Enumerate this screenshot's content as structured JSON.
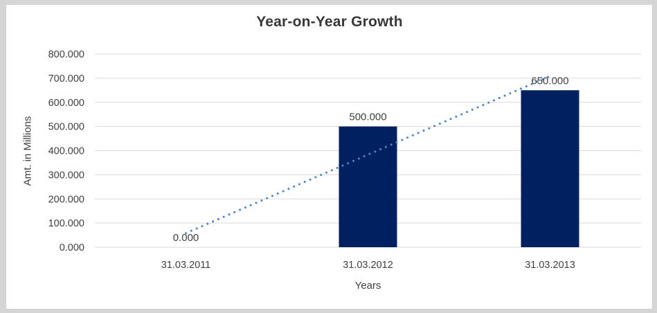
{
  "window": {
    "outer_background": "#d5d5d5",
    "chart_background": "#ffffff",
    "chart_border_color": "#cfcfcf"
  },
  "chart_data": {
    "type": "bar",
    "title": "Year-on-Year Growth",
    "xlabel": "Years",
    "ylabel": "Amt. in Millions",
    "categories": [
      "31.03.2011",
      "31.03.2012",
      "31.03.2013"
    ],
    "values": [
      0,
      500,
      650
    ],
    "data_labels": [
      "0.000",
      "500.000",
      "650.000"
    ],
    "ylim": [
      0,
      800
    ],
    "yticks": [
      0,
      100,
      200,
      300,
      400,
      500,
      600,
      700,
      800
    ],
    "ytick_labels": [
      "0.000",
      "100.000",
      "200.000",
      "300.000",
      "400.000",
      "500.000",
      "600.000",
      "700.000",
      "800.000"
    ],
    "grid": true,
    "legend": "none",
    "bar_color": "#002060",
    "gridline_color": "#d9d9d9",
    "text_color": "#404040",
    "title_color": "#383838",
    "trendline": {
      "type": "linear",
      "style": "dotted",
      "color": "#4a86c8",
      "y_start": 58.3,
      "y_end": 708.3
    }
  }
}
